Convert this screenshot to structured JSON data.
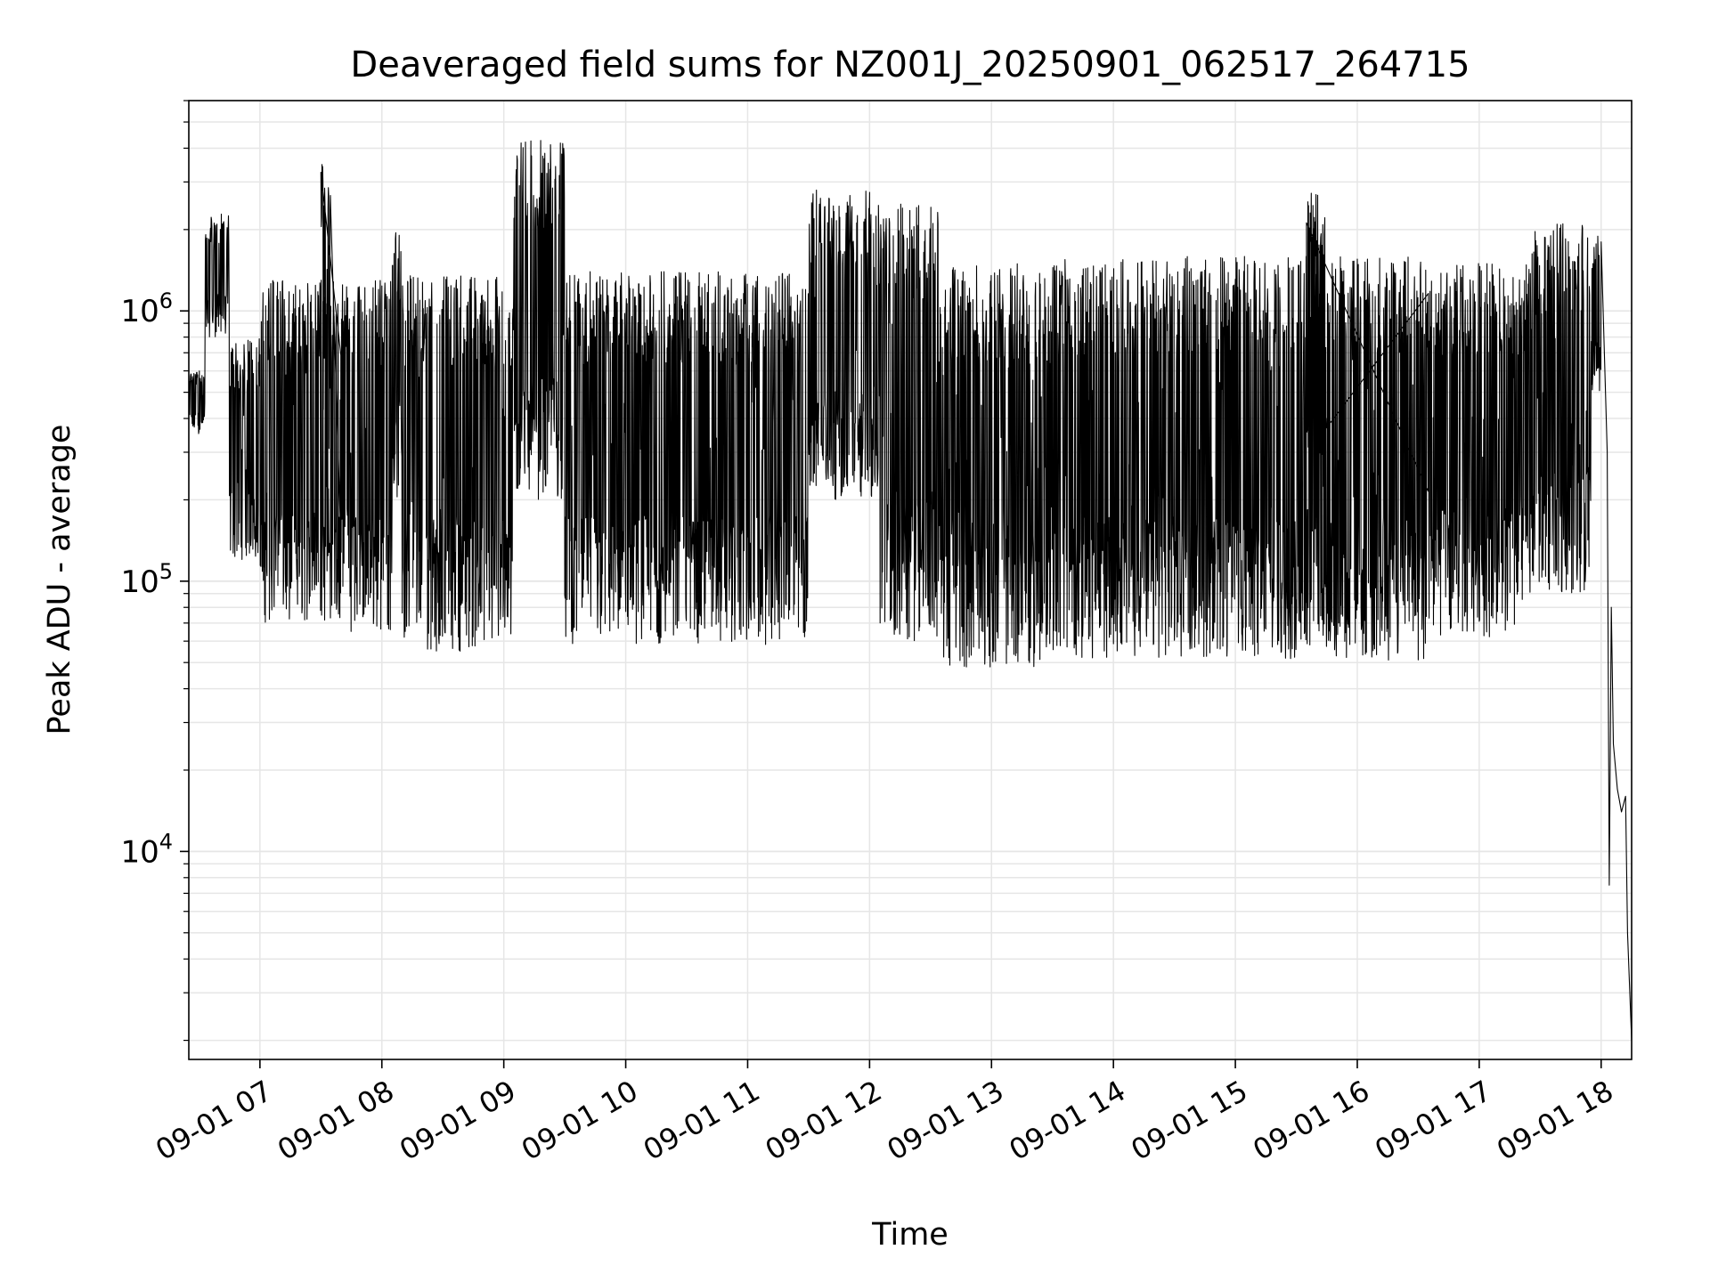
{
  "chart_data": {
    "type": "line",
    "title": "Deaveraged field sums for NZ001J_20250901_062517_264715",
    "xlabel": "Time",
    "ylabel": "Peak ADU - average",
    "yscale": "log",
    "ylim": [
      1700,
      6000000
    ],
    "xlim": [
      "2025-09-01T06:25",
      "2025-09-01T18:15"
    ],
    "grid": true,
    "line_color": "#000000",
    "grid_color": "#e6e6e6",
    "x_ticks": [
      {
        "value": "2025-09-01T07:00",
        "label": "09-01 07"
      },
      {
        "value": "2025-09-01T08:00",
        "label": "09-01 08"
      },
      {
        "value": "2025-09-01T09:00",
        "label": "09-01 09"
      },
      {
        "value": "2025-09-01T10:00",
        "label": "09-01 10"
      },
      {
        "value": "2025-09-01T11:00",
        "label": "09-01 11"
      },
      {
        "value": "2025-09-01T12:00",
        "label": "09-01 12"
      },
      {
        "value": "2025-09-01T13:00",
        "label": "09-01 13"
      },
      {
        "value": "2025-09-01T14:00",
        "label": "09-01 14"
      },
      {
        "value": "2025-09-01T15:00",
        "label": "09-01 15"
      },
      {
        "value": "2025-09-01T16:00",
        "label": "09-01 16"
      },
      {
        "value": "2025-09-01T17:00",
        "label": "09-01 17"
      },
      {
        "value": "2025-09-01T18:00",
        "label": "09-01 18"
      }
    ],
    "y_ticks": [
      {
        "value": 10000,
        "base": "10",
        "exp": "4"
      },
      {
        "value": 100000,
        "base": "10",
        "exp": "5"
      },
      {
        "value": 1000000,
        "base": "10",
        "exp": "6"
      }
    ],
    "series": [
      {
        "segments": [
          {
            "t0": "2025-09-01T06:25",
            "t1": "2025-09-01T06:33",
            "lo": 350000,
            "hi": 600000
          },
          {
            "t0": "2025-09-01T06:33",
            "t1": "2025-09-01T06:45",
            "lo": 800000,
            "hi": 2300000
          },
          {
            "t0": "2025-09-01T06:45",
            "t1": "2025-09-01T07:00",
            "lo": 120000,
            "hi": 800000
          },
          {
            "t0": "2025-09-01T07:00",
            "t1": "2025-09-01T07:40",
            "lo": 70000,
            "hi": 1300000
          },
          {
            "t0": "2025-09-01T07:30",
            "t1": "2025-09-01T07:35",
            "lo": 300000,
            "hi": 3600000
          },
          {
            "t0": "2025-09-01T07:40",
            "t1": "2025-09-01T08:05",
            "lo": 65000,
            "hi": 1300000
          },
          {
            "t0": "2025-09-01T08:05",
            "t1": "2025-09-01T08:10",
            "lo": 200000,
            "hi": 2000000
          },
          {
            "t0": "2025-09-01T08:10",
            "t1": "2025-09-01T09:05",
            "lo": 55000,
            "hi": 1350000
          },
          {
            "t0": "2025-09-01T09:05",
            "t1": "2025-09-01T09:30",
            "lo": 200000,
            "hi": 4300000
          },
          {
            "t0": "2025-09-01T09:30",
            "t1": "2025-09-01T11:30",
            "lo": 58000,
            "hi": 1400000
          },
          {
            "t0": "2025-09-01T11:30",
            "t1": "2025-09-01T12:05",
            "lo": 200000,
            "hi": 2800000
          },
          {
            "t0": "2025-09-01T12:05",
            "t1": "2025-09-01T12:35",
            "lo": 60000,
            "hi": 2500000
          },
          {
            "t0": "2025-09-01T12:35",
            "t1": "2025-09-01T13:35",
            "lo": 48000,
            "hi": 1500000
          },
          {
            "t0": "2025-09-01T13:35",
            "t1": "2025-09-01T14:55",
            "lo": 52000,
            "hi": 1600000
          },
          {
            "t0": "2025-09-01T14:55",
            "t1": "2025-09-01T16:35",
            "lo": 50000,
            "hi": 1600000
          },
          {
            "t0": "2025-09-01T15:35",
            "t1": "2025-09-01T15:45",
            "lo": 200000,
            "hi": 2800000
          },
          {
            "t0": "2025-09-01T16:35",
            "t1": "2025-09-01T17:25",
            "lo": 62000,
            "hi": 1500000
          },
          {
            "t0": "2025-09-01T17:25",
            "t1": "2025-09-01T17:55",
            "lo": 90000,
            "hi": 2100000
          },
          {
            "t0": "2025-09-01T17:55",
            "t1": "2025-09-01T18:00",
            "lo": 500000,
            "hi": 1900000
          }
        ],
        "tail": [
          {
            "t": "2025-09-01T18:00",
            "y": 1800000
          },
          {
            "t": "2025-09-01T18:03",
            "y": 300000
          },
          {
            "t": "2025-09-01T18:04",
            "y": 7500
          },
          {
            "t": "2025-09-01T18:05",
            "y": 80000
          },
          {
            "t": "2025-09-01T18:06",
            "y": 25000
          },
          {
            "t": "2025-09-01T18:08",
            "y": 17000
          },
          {
            "t": "2025-09-01T18:10",
            "y": 14000
          },
          {
            "t": "2025-09-01T18:12",
            "y": 16000
          },
          {
            "t": "2025-09-01T18:13",
            "y": 5000
          },
          {
            "t": "2025-09-01T18:15",
            "y": 2000
          }
        ]
      }
    ]
  }
}
